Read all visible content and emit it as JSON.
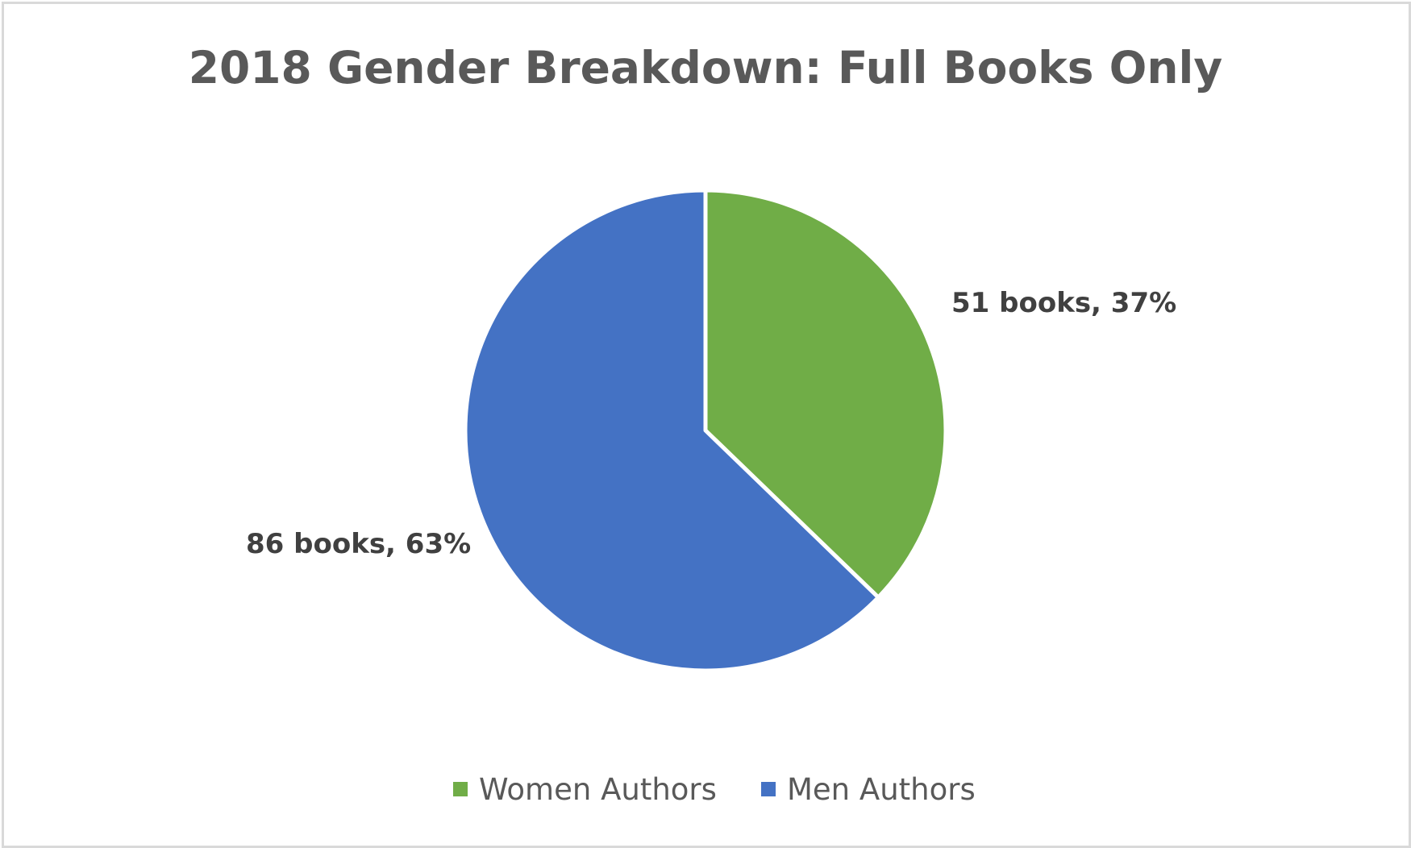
{
  "chart_data": {
    "type": "pie",
    "title": "2018 Gender Breakdown: Full Books Only",
    "categories": [
      "Women Authors",
      "Men Authors"
    ],
    "values": [
      51,
      86
    ],
    "percentages": [
      37,
      63
    ],
    "data_labels": [
      "51 books, 37%",
      "86 books, 63%"
    ],
    "colors": [
      "#70ad47",
      "#4472c4"
    ],
    "legend": {
      "position": "bottom",
      "entries": [
        "Women Authors",
        "Men Authors"
      ]
    },
    "start_angle": "12 o'clock",
    "direction": "clockwise"
  }
}
